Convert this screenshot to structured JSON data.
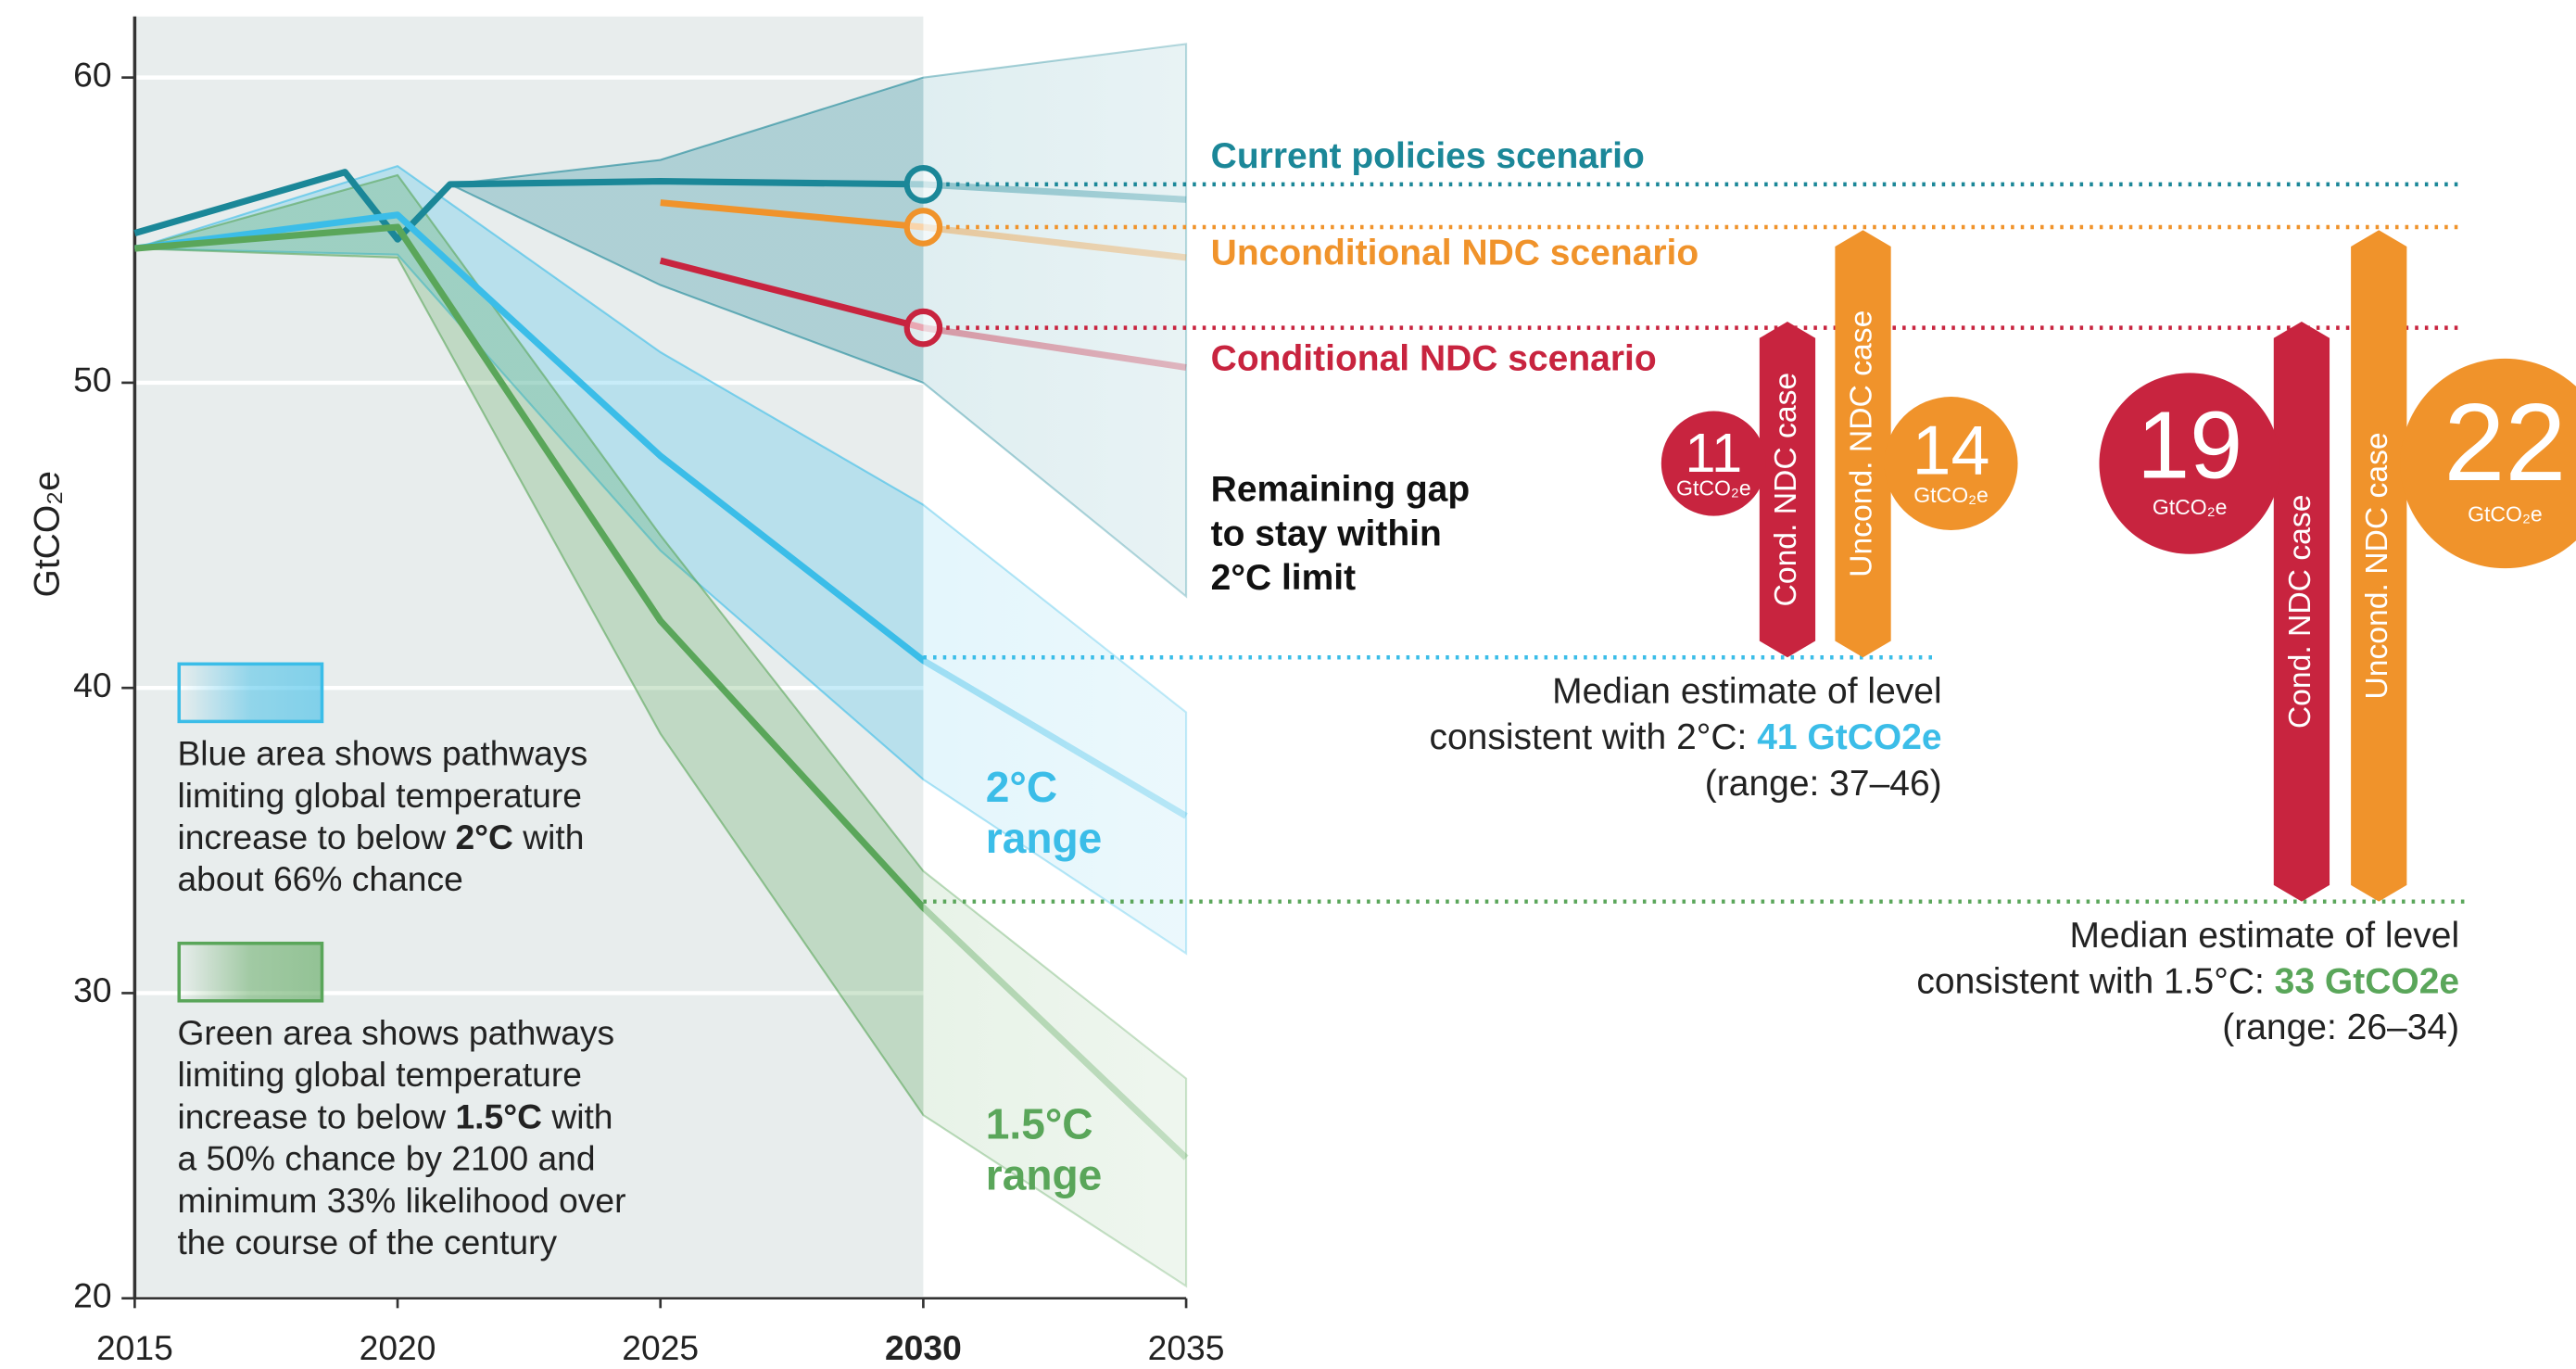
{
  "chart_data": {
    "type": "line",
    "y_label": "GtCO₂e",
    "xlim": [
      2015,
      2035
    ],
    "ylim": [
      20,
      62
    ],
    "xticks": [
      2015,
      2020,
      2025,
      2030,
      2035
    ],
    "yticks": [
      20,
      30,
      40,
      50,
      60
    ],
    "grid": true,
    "highlight_x": 2030,
    "series": [
      {
        "name": "Current policies scenario",
        "color": "#1b8798",
        "x": [
          2015,
          2019,
          2020,
          2021,
          2025,
          2030,
          2035
        ],
        "values": [
          54.9,
          56.9,
          54.7,
          56.5,
          56.6,
          56.5,
          56.0
        ],
        "band": {
          "x": [
            2021,
            2025,
            2030,
            2035
          ],
          "high": [
            56.5,
            57.3,
            60.0,
            61.1
          ],
          "low": [
            56.5,
            53.2,
            50.0,
            43.0
          ]
        }
      },
      {
        "name": "Unconditional NDC scenario",
        "color": "#f0932b",
        "x": [
          2025,
          2030,
          2035
        ],
        "values": [
          55.9,
          55.1,
          54.1
        ]
      },
      {
        "name": "Conditional NDC scenario",
        "color": "#c8243f",
        "x": [
          2025,
          2030,
          2035
        ],
        "values": [
          54.0,
          51.8,
          50.5
        ]
      },
      {
        "range_label": [
          "2°C",
          "range"
        ],
        "color": "#3bbde8",
        "x": [
          2015,
          2020,
          2025,
          2030,
          2035
        ],
        "values": [
          54.4,
          55.5,
          47.6,
          40.9,
          35.8
        ],
        "band": {
          "x": [
            2015,
            2020,
            2025,
            2030,
            2035
          ],
          "high": [
            54.4,
            57.1,
            51.0,
            46.0,
            39.2
          ],
          "low": [
            54.4,
            54.2,
            44.5,
            37.0,
            31.3
          ]
        }
      },
      {
        "range_label": [
          "1.5°C",
          "range"
        ],
        "color": "#5aa65a",
        "x": [
          2015,
          2020,
          2025,
          2030,
          2035
        ],
        "values": [
          54.4,
          55.1,
          42.2,
          32.8,
          24.6
        ],
        "band": {
          "x": [
            2015,
            2020,
            2025,
            2030,
            2035
          ],
          "high": [
            54.4,
            56.8,
            45.0,
            34.0,
            27.2
          ],
          "low": [
            54.4,
            54.1,
            38.5,
            26.0,
            20.4
          ]
        }
      }
    ],
    "gap_note": [
      "Remaining gap",
      "to stay within",
      "2°C limit"
    ],
    "medians": [
      {
        "lines": [
          "Median estimate of level",
          "consistent with 2°C: "
        ],
        "value": 41,
        "value_label": "41 GtCO2e",
        "range_text": "(range: 37–46)",
        "color": "#3bbde8",
        "gaps": [
          {
            "label": "Cond. NDC case",
            "value": 11,
            "unit": "GtCO₂e",
            "color": "#c8243f"
          },
          {
            "label": "Uncond. NDC case",
            "value": 14,
            "unit": "GtCO₂e",
            "color": "#f0932b"
          }
        ]
      },
      {
        "lines": [
          "Median estimate of level",
          "consistent with 1.5°C: "
        ],
        "value": 33,
        "value_label": "33 GtCO2e",
        "range_text": "(range: 26–34)",
        "color": "#5aa65a",
        "gaps": [
          {
            "label": "Cond. NDC case",
            "value": 19,
            "unit": "GtCO₂e",
            "color": "#c8243f"
          },
          {
            "label": "Uncond. NDC case",
            "value": 22,
            "unit": "GtCO₂e",
            "color": "#f0932b"
          }
        ]
      }
    ],
    "legend": [
      {
        "color": "#3bbde8",
        "lines": [
          [
            "Blue area shows pathways"
          ],
          [
            "limiting global temperature"
          ],
          [
            "increase to below ",
            "2°C",
            " with"
          ],
          [
            "about 66% chance"
          ]
        ]
      },
      {
        "color": "#5aa65a",
        "lines": [
          [
            "Green area shows pathways"
          ],
          [
            "limiting global temperature"
          ],
          [
            "increase to below ",
            "1.5°C",
            " with"
          ],
          [
            "a 50% chance by 2100 and"
          ],
          [
            "minimum 33% likelihood over"
          ],
          [
            "the course of the century"
          ]
        ]
      }
    ]
  }
}
